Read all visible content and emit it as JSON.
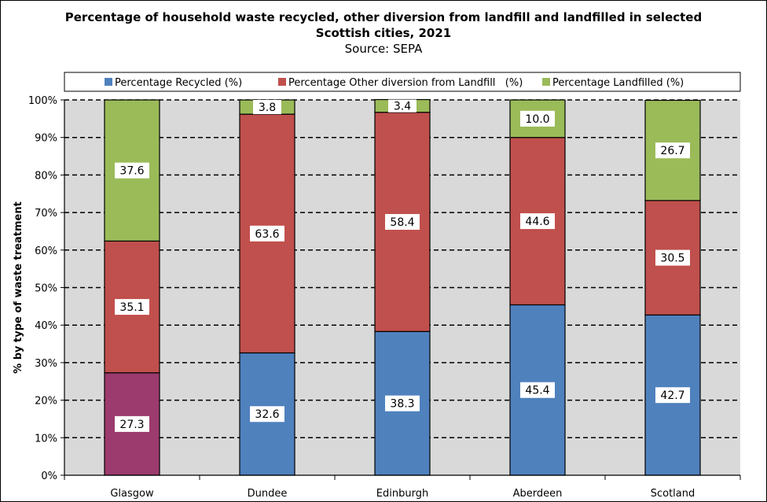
{
  "chart_data": {
    "type": "bar",
    "stacked": true,
    "title_line1": "Percentage of household waste recycled, other diversion from landfill and landfilled in selected",
    "title_line2": "Scottish cities, 2021",
    "subtitle": "Source: SEPA",
    "ylabel": "% by type of waste treatment",
    "ylim": [
      0,
      100
    ],
    "y_ticks": [
      "0%",
      "10%",
      "20%",
      "30%",
      "40%",
      "50%",
      "60%",
      "70%",
      "80%",
      "90%",
      "100%"
    ],
    "grid": "horizontal dashed",
    "legend_position": "top",
    "categories": [
      "Glasgow",
      "Dundee",
      "Edinburgh",
      "Aberdeen",
      "Scotland"
    ],
    "series": [
      {
        "name": "Percentage Recycled (%)",
        "color": "#4F81BD",
        "values": [
          27.3,
          32.6,
          38.3,
          45.4,
          42.7
        ]
      },
      {
        "name": "Percentage Other diversion from Landfill   (%)",
        "color": "#C0504D",
        "values": [
          35.1,
          63.6,
          58.4,
          44.6,
          30.5
        ]
      },
      {
        "name": "Percentage Landfilled (%)",
        "color": "#9BBB59",
        "values": [
          37.6,
          3.8,
          3.4,
          10.0,
          26.7
        ]
      }
    ],
    "data_labels": [
      [
        "27.3",
        "32.6",
        "38.3",
        "45.4",
        "42.7"
      ],
      [
        "35.1",
        "63.6",
        "58.4",
        "44.6",
        "30.5"
      ],
      [
        "37.6",
        "3.8",
        "3.4",
        "10.0",
        "26.7"
      ]
    ],
    "highlight": {
      "category_index": 0,
      "series_index": 0,
      "color": "#9B3B6E"
    }
  }
}
